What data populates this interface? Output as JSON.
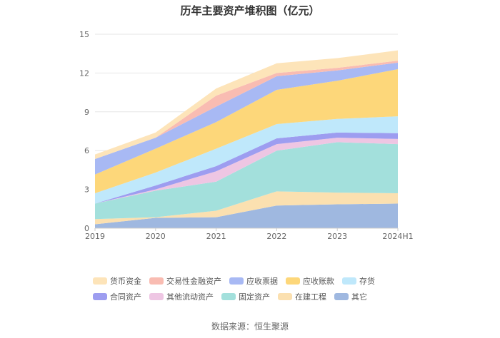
{
  "chart_data": {
    "type": "area",
    "stacked": true,
    "title": "历年主要资产堆积图（亿元）",
    "source": "数据来源：恒生聚源",
    "categories": [
      "2019",
      "2020",
      "2021",
      "2022",
      "2023",
      "2024H1"
    ],
    "yticks": [
      "0",
      "3",
      "6",
      "9",
      "12",
      "15"
    ],
    "ylim": [
      0,
      15
    ],
    "grid": true,
    "legend_position": "bottom",
    "series": [
      {
        "name": "其它",
        "color": "#9fb8e0",
        "values": [
          0.3,
          0.8,
          0.85,
          1.75,
          1.85,
          1.9
        ]
      },
      {
        "name": "在建工程",
        "color": "#fbe0b0",
        "values": [
          0.4,
          0.05,
          0.5,
          1.1,
          0.9,
          0.8
        ]
      },
      {
        "name": "固定资产",
        "color": "#a3e0dc",
        "values": [
          1.2,
          2.05,
          2.25,
          3.15,
          3.9,
          3.8
        ]
      },
      {
        "name": "其他流动资产",
        "color": "#eec6e3",
        "values": [
          0.0,
          0.1,
          0.8,
          0.5,
          0.35,
          0.4
        ]
      },
      {
        "name": "合同资产",
        "color": "#9d9df0",
        "values": [
          0.0,
          0.3,
          0.4,
          0.45,
          0.4,
          0.45
        ]
      },
      {
        "name": "存货",
        "color": "#bfe8fb",
        "values": [
          0.8,
          1.0,
          1.35,
          1.1,
          1.05,
          1.3
        ]
      },
      {
        "name": "应收账款",
        "color": "#fdd77a",
        "values": [
          1.45,
          1.85,
          2.05,
          2.65,
          2.95,
          3.65
        ]
      },
      {
        "name": "应收票据",
        "color": "#a8b9f4",
        "values": [
          1.2,
          0.85,
          1.2,
          1.05,
          0.8,
          0.5
        ]
      },
      {
        "name": "交易性金融资产",
        "color": "#f9bcb2",
        "values": [
          0.0,
          0.0,
          0.85,
          0.25,
          0.2,
          0.15
        ]
      },
      {
        "name": "货币资金",
        "color": "#fde4b9",
        "values": [
          0.35,
          0.4,
          0.55,
          0.75,
          0.75,
          0.8
        ]
      }
    ]
  }
}
